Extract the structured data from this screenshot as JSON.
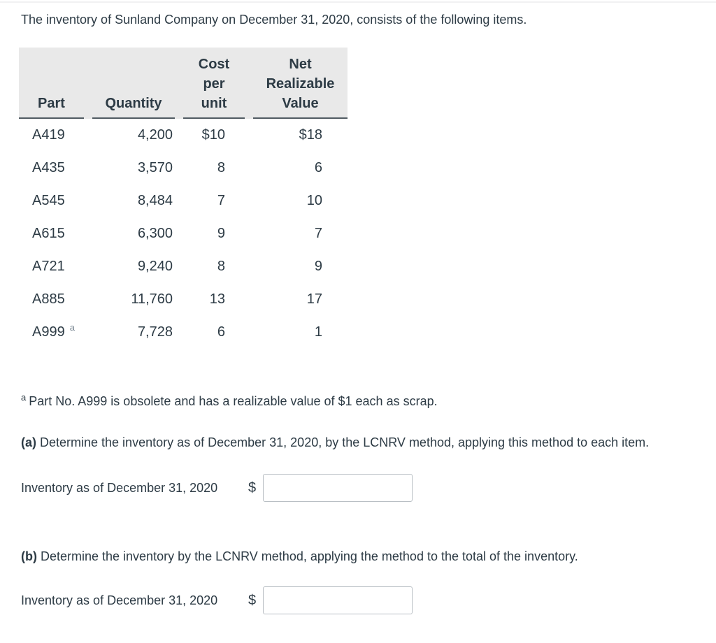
{
  "intro": "The inventory of Sunland Company on December 31, 2020, consists of the following items.",
  "table": {
    "headers": [
      {
        "text": "Part"
      },
      {
        "text": "Quantity"
      },
      {
        "text": "Cost\nper\nunit"
      },
      {
        "text": "Net\nRealizable\nValue"
      }
    ],
    "rows": [
      {
        "part": "A419",
        "sup": "",
        "qty": "4,200",
        "cost": "$10",
        "nrv": "$18"
      },
      {
        "part": "A435",
        "sup": "",
        "qty": "3,570",
        "cost": "8",
        "nrv": "6"
      },
      {
        "part": "A545",
        "sup": "",
        "qty": "8,484",
        "cost": "7",
        "nrv": "10"
      },
      {
        "part": "A615",
        "sup": "",
        "qty": "6,300",
        "cost": "9",
        "nrv": "7"
      },
      {
        "part": "A721",
        "sup": "",
        "qty": "9,240",
        "cost": "8",
        "nrv": "9"
      },
      {
        "part": "A885",
        "sup": "",
        "qty": "11,760",
        "cost": "13",
        "nrv": "17"
      },
      {
        "part": "A999",
        "sup": "a",
        "qty": "7,728",
        "cost": "6",
        "nrv": "1"
      }
    ]
  },
  "footnote": {
    "marker": "a",
    "text": "Part No. A999 is obsolete and has a realizable value of $1 each as scrap."
  },
  "part_a": {
    "label": "(a)",
    "text": "Determine the inventory as of December 31, 2020, by the LCNRV method, applying this method to each item."
  },
  "part_b": {
    "label": "(b)",
    "text": "Determine the inventory by the LCNRV method, applying the method to the total of the inventory."
  },
  "answers": {
    "a": {
      "label": "Inventory as of December 31, 2020",
      "currency": "$",
      "value": "",
      "placeholder": ""
    },
    "b": {
      "label": "Inventory as of December 31, 2020",
      "currency": "$",
      "value": "",
      "placeholder": ""
    }
  },
  "colors": {
    "text": "#2d3b45",
    "table_header_bg": "#e9e9e9",
    "table_underline": "#505a62",
    "input_border": "#b9bfc4",
    "divider": "#e4e6e8"
  }
}
